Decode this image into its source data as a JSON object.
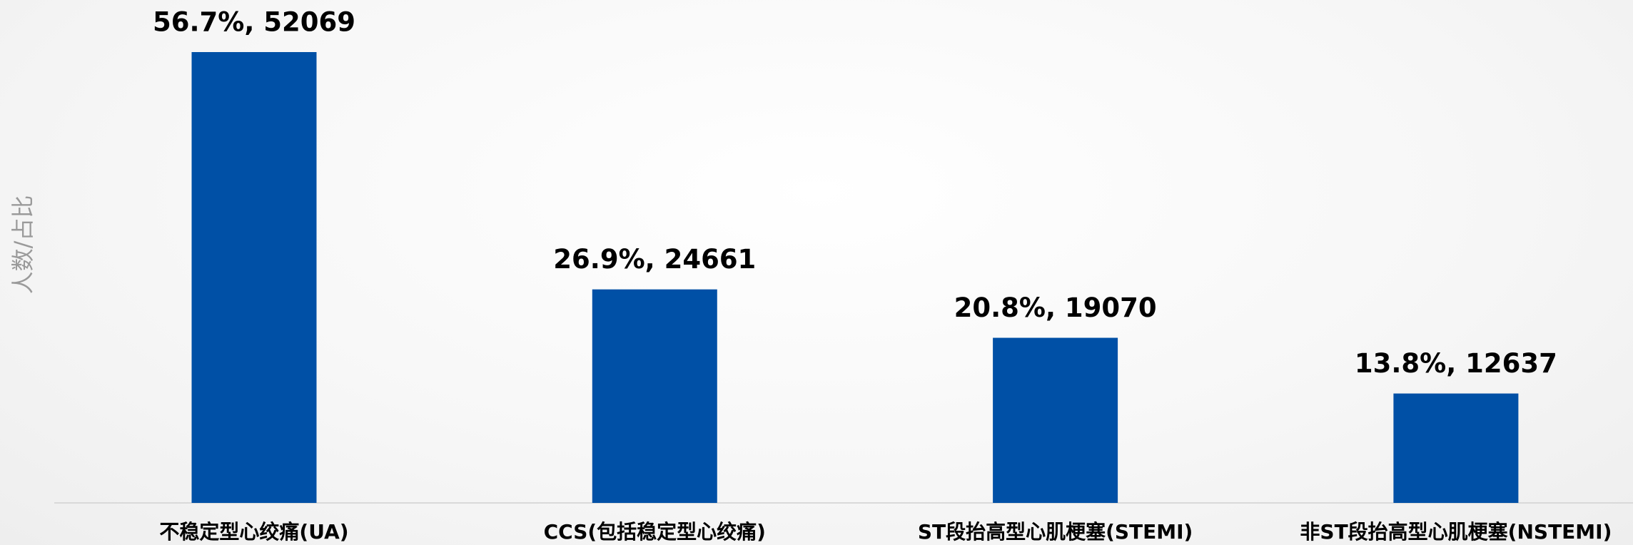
{
  "chart_data": {
    "type": "bar",
    "y_label": "人数/占比",
    "categories": [
      "不稳定型心绞痛(UA)",
      "CCS(包括稳定型心绞痛)",
      "ST段抬高型心肌梗塞(STEMI)",
      "非ST段抬高型心肌梗塞(NSTEMI)"
    ],
    "values": [
      52069,
      24661,
      19070,
      12637
    ],
    "value_labels": [
      "56.7%, 52069",
      "26.9%, 24661",
      "20.8%, 19070",
      "13.8%, 12637"
    ],
    "color": "#0050a6"
  }
}
